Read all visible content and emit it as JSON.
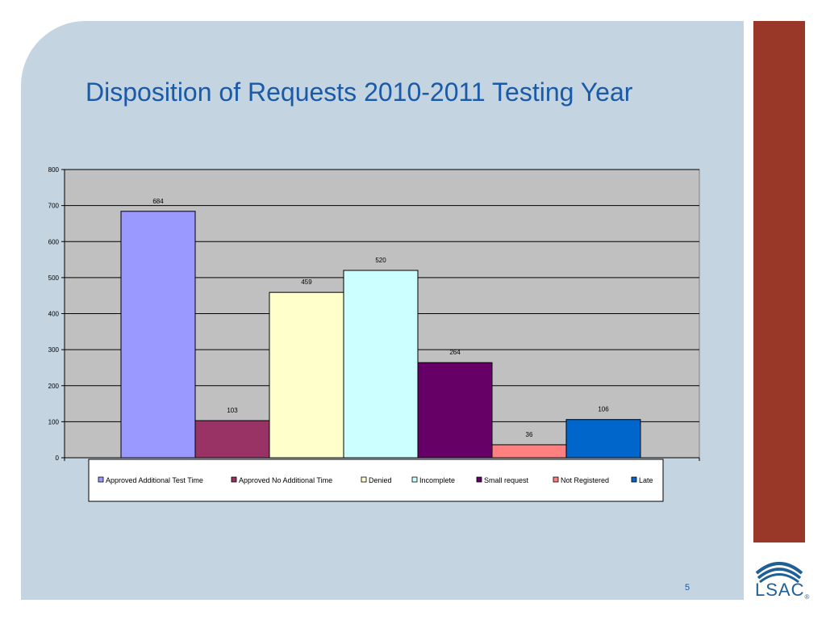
{
  "slide": {
    "title": "Disposition of Requests 2010-2011 Testing Year",
    "page_number": "5"
  },
  "logo": {
    "text": "LSAC",
    "mark": "®"
  },
  "colors": {
    "title": "#1a5aa6",
    "side_bar": "#993828",
    "background": "#c4d4e0",
    "plot_area": "#c0c0c0"
  },
  "chart_data": {
    "type": "bar",
    "title": "",
    "xlabel": "",
    "ylabel": "",
    "ylim": [
      0,
      800
    ],
    "yticks": [
      0,
      100,
      200,
      300,
      400,
      500,
      600,
      700,
      800
    ],
    "grid": true,
    "legend_position": "bottom",
    "series": [
      {
        "name": "Approved Additional Test Time",
        "values": [
          684
        ],
        "color": "#9999ff"
      },
      {
        "name": "Approved No Additional Time",
        "values": [
          103
        ],
        "color": "#993366"
      },
      {
        "name": "Denied",
        "values": [
          459
        ],
        "color": "#ffffcc"
      },
      {
        "name": "Incomplete",
        "values": [
          520
        ],
        "color": "#ccffff"
      },
      {
        "name": "Small request",
        "values": [
          264
        ],
        "color": "#660066"
      },
      {
        "name": "Not Registered",
        "values": [
          36
        ],
        "color": "#ff8080"
      },
      {
        "name": "Late",
        "values": [
          106
        ],
        "color": "#0066cc"
      }
    ]
  }
}
